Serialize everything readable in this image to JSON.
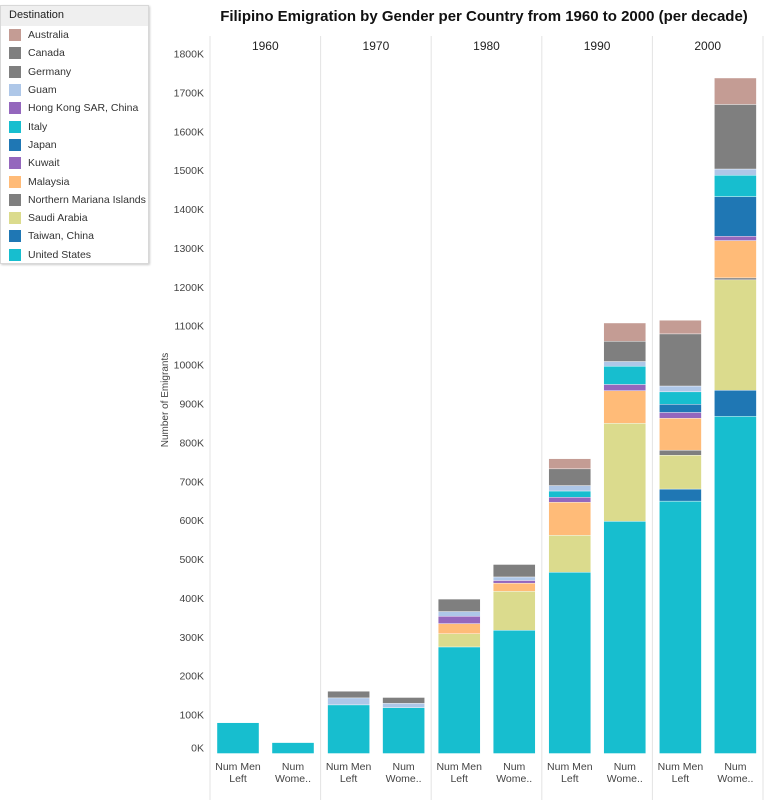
{
  "legend": {
    "title": "Destination",
    "items": [
      {
        "name": "Australia",
        "color": "#c49c94"
      },
      {
        "name": "Canada",
        "color": "#7f7f7f"
      },
      {
        "name": "Germany",
        "color": "#7f7f7f"
      },
      {
        "name": "Guam",
        "color": "#aec7e8"
      },
      {
        "name": "Hong Kong SAR, China",
        "color": "#9467bd"
      },
      {
        "name": "Italy",
        "color": "#17becf"
      },
      {
        "name": "Japan",
        "color": "#1f77b4"
      },
      {
        "name": "Kuwait",
        "color": "#9467bd"
      },
      {
        "name": "Malaysia",
        "color": "#ffbb78"
      },
      {
        "name": "Northern Mariana Islands",
        "color": "#7f7f7f"
      },
      {
        "name": "Saudi Arabia",
        "color": "#dbdb8d"
      },
      {
        "name": "Taiwan, China",
        "color": "#1f77b4"
      },
      {
        "name": "United States",
        "color": "#17becf"
      }
    ]
  },
  "chart_data": {
    "type": "bar",
    "stacked": true,
    "title": "Filipino Emigration by Gender per Country from 1960 to 2000 (per decade)",
    "ylabel": "Number of Emigrants",
    "ylim": [
      0,
      1800000
    ],
    "yticks": [
      "0K",
      "100K",
      "200K",
      "300K",
      "400K",
      "500K",
      "600K",
      "700K",
      "800K",
      "900K",
      "1000K",
      "1100K",
      "1200K",
      "1300K",
      "1400K",
      "1500K",
      "1600K",
      "1700K",
      "1800K"
    ],
    "panels": [
      "1960",
      "1970",
      "1980",
      "1990",
      "2000"
    ],
    "bar_labels": [
      "Num Men Left",
      "Num Wome.."
    ],
    "series": [
      {
        "name": "United States",
        "values": [
          79000,
          28000,
          125000,
          118000,
          274000,
          317000,
          466000,
          597000,
          649000,
          867000
        ]
      },
      {
        "name": "Taiwan, China",
        "values": [
          0,
          0,
          0,
          0,
          0,
          0,
          0,
          0,
          31000,
          67000
        ]
      },
      {
        "name": "Saudi Arabia",
        "values": [
          0,
          0,
          0,
          0,
          34000,
          100000,
          95000,
          252000,
          87000,
          284000
        ]
      },
      {
        "name": "Northern Mariana Islands",
        "values": [
          0,
          0,
          0,
          0,
          0,
          0,
          0,
          0,
          13000,
          5000
        ]
      },
      {
        "name": "Malaysia",
        "values": [
          0,
          0,
          0,
          0,
          26000,
          21000,
          85000,
          84000,
          82000,
          96000
        ]
      },
      {
        "name": "Kuwait",
        "values": [
          0,
          0,
          0,
          0,
          19000,
          7000,
          13000,
          16000,
          15000,
          11000
        ]
      },
      {
        "name": "Japan",
        "values": [
          0,
          0,
          0,
          0,
          0,
          0,
          0,
          0,
          21000,
          102000
        ]
      },
      {
        "name": "Italy",
        "values": [
          0,
          0,
          0,
          0,
          0,
          0,
          16000,
          47000,
          32000,
          55000
        ]
      },
      {
        "name": "Hong Kong SAR, China",
        "values": [
          0,
          0,
          0,
          0,
          0,
          0,
          0,
          0,
          0,
          0
        ]
      },
      {
        "name": "Guam",
        "values": [
          0,
          0,
          18000,
          11000,
          12000,
          9000,
          14000,
          12000,
          15000,
          16000
        ]
      },
      {
        "name": "Germany",
        "values": [
          0,
          0,
          0,
          0,
          0,
          0,
          0,
          0,
          0,
          0
        ]
      },
      {
        "name": "Canada",
        "values": [
          0,
          0,
          17000,
          15000,
          32000,
          32000,
          43000,
          52000,
          134000,
          166000
        ]
      },
      {
        "name": "Australia",
        "values": [
          0,
          0,
          0,
          0,
          0,
          0,
          26000,
          47000,
          35000,
          68000
        ]
      }
    ]
  }
}
